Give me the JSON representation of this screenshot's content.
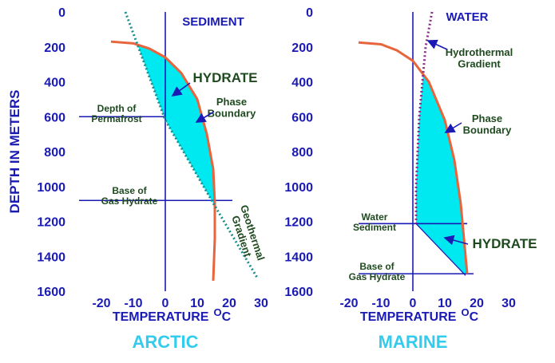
{
  "y_axis_label": "DEPTH IN METERS",
  "chart_data": [
    {
      "type": "line",
      "title": "ARCTIC",
      "x_label": "TEMPERATURE",
      "x_unit_sup": "O",
      "x_unit": "C",
      "xlim": [
        -30,
        32
      ],
      "xticks": [
        -20,
        -10,
        0,
        10,
        20,
        30
      ],
      "ylim": [
        0,
        1600
      ],
      "yticks": [
        0,
        200,
        400,
        600,
        800,
        1000,
        1200,
        1400,
        1600
      ],
      "y_reversed": true,
      "series": [
        {
          "name": "Phase Boundary",
          "color": "#e8643c",
          "style": "solid",
          "x": [
            -17,
            -10,
            -5,
            0,
            5,
            10,
            13,
            15,
            15.5,
            15.5,
            15
          ],
          "values": [
            170,
            180,
            210,
            260,
            350,
            500,
            700,
            900,
            1100,
            1300,
            1540
          ]
        },
        {
          "name": "Geothermal Gradient",
          "color": "#1a8c8c",
          "style": "dotted",
          "x": [
            -12.5,
            0,
            14.5,
            29
          ],
          "values": [
            0,
            620,
            1080,
            1530
          ]
        }
      ],
      "hlines": [
        {
          "y": 600,
          "x": [
            -27,
            0
          ]
        },
        {
          "y": 1080,
          "x": [
            -27,
            21
          ]
        }
      ],
      "hydrate_color": "#00e8f0",
      "annotations": [
        {
          "lines": [
            "SEDIMENT"
          ]
        },
        {
          "lines": [
            "HYDRATE"
          ]
        },
        {
          "lines": [
            "Phase",
            "Boundary"
          ]
        },
        {
          "lines": [
            "Depth of",
            "Permafrost"
          ]
        },
        {
          "lines": [
            "Base of",
            "Gas Hydrate"
          ]
        },
        {
          "lines": [
            "Geothermal",
            "Gradient"
          ]
        }
      ]
    },
    {
      "type": "line",
      "title": "MARINE",
      "x_label": "TEMPERATURE",
      "x_unit_sup": "O",
      "x_unit": "C",
      "xlim": [
        -30,
        32
      ],
      "xticks": [
        -20,
        -10,
        0,
        10,
        20,
        30
      ],
      "ylim": [
        0,
        1600
      ],
      "yticks": [
        0,
        200,
        400,
        600,
        800,
        1000,
        1200,
        1400,
        1600
      ],
      "y_reversed": true,
      "series": [
        {
          "name": "Phase Boundary",
          "color": "#e8643c",
          "style": "solid",
          "x": [
            -17,
            -10,
            -5,
            0,
            5,
            10,
            13,
            15,
            16,
            17
          ],
          "values": [
            175,
            185,
            220,
            280,
            400,
            620,
            850,
            1100,
            1300,
            1500
          ]
        },
        {
          "name": "Hydrothermal Gradient",
          "color": "#8a2a8a",
          "style": "dotted",
          "x": [
            6,
            4,
            2,
            1,
            1
          ],
          "values": [
            0,
            200,
            600,
            1000,
            1213
          ]
        },
        {
          "color": "#1a1ab4",
          "style": "thin",
          "x": [
            1,
            16.5
          ],
          "values": [
            1213,
            1510
          ]
        }
      ],
      "hlines": [
        {
          "y": 1213,
          "x": [
            -17,
            17
          ]
        },
        {
          "y": 1500,
          "x": [
            -17,
            19
          ]
        }
      ],
      "hydrate_color": "#00e8f0",
      "annotations": [
        {
          "lines": [
            "WATER"
          ]
        },
        {
          "lines": [
            "Hydrothermal",
            "Gradient"
          ]
        },
        {
          "lines": [
            "Phase",
            "Boundary"
          ]
        },
        {
          "lines": [
            "Water",
            "Sediment"
          ]
        },
        {
          "lines": [
            "HYDRATE"
          ]
        },
        {
          "lines": [
            "Base of",
            "Gas Hydrate"
          ]
        }
      ]
    }
  ]
}
